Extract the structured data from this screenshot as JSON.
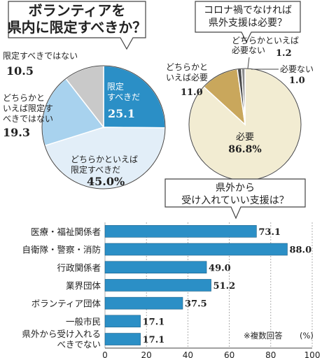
{
  "colors": {
    "ink": "#222222",
    "box_stroke": "#444444",
    "bar_fill": "#2b8fc6",
    "bar_stroke": "#1a5f86",
    "grid": "#999999",
    "pie1": [
      "#2b8fc6",
      "#e2eef8",
      "#a8d2ee",
      "#c9c9c9"
    ],
    "pie2": [
      "#f2ecd2",
      "#c9a75c",
      "#4a4a4a",
      "#8c8c8c"
    ],
    "slice_label_light": "#ffffff"
  },
  "chart_data": [
    {
      "type": "pie",
      "title": [
        "ボランティアを",
        "県内に限定すべきか？"
      ],
      "slices": [
        {
          "label": [
            "限定",
            "すべきだ"
          ],
          "value": 25.1,
          "value_text": "25.1",
          "color_key": 0
        },
        {
          "label": [
            "どちらかといえば",
            "限定すべきだ"
          ],
          "value": 45.0,
          "value_text": "45.0%",
          "color_key": 1
        },
        {
          "label": [
            "どちらかと",
            "いえば限定す",
            "べきではない"
          ],
          "value": 19.3,
          "value_text": "19.3",
          "color_key": 2
        },
        {
          "label": [
            "限定すべきではない"
          ],
          "value": 10.5,
          "value_text": "10.5",
          "color_key": 3
        }
      ]
    },
    {
      "type": "pie",
      "title": [
        "コロナ禍でなければ",
        "県外支援は必要？"
      ],
      "slices": [
        {
          "label": [
            "必要"
          ],
          "value": 86.8,
          "value_text": "86.8%",
          "color_key": 0
        },
        {
          "label": [
            "どちらかと",
            "いえば必要"
          ],
          "value": 11.0,
          "value_text": "11.0",
          "color_key": 1
        },
        {
          "label": [
            "どちらかといえば",
            "必要ない"
          ],
          "value": 1.2,
          "value_text": "1.2",
          "color_key": 2
        },
        {
          "label": [
            "必要ない"
          ],
          "value": 1.0,
          "value_text": "1.0",
          "color_key": 3
        }
      ]
    },
    {
      "type": "bar",
      "orientation": "horizontal",
      "title": [
        "県外から",
        "受け入れていい支援は？"
      ],
      "categories": [
        [
          "医療・福祉関係者"
        ],
        [
          "自衛隊・警察・消防"
        ],
        [
          "行政関係者"
        ],
        [
          "業界団体"
        ],
        [
          "ボランティア団体"
        ],
        [
          "一般市民"
        ],
        [
          "県外から受け入れる",
          "べきでない"
        ]
      ],
      "values": [
        73.1,
        88.0,
        49.0,
        51.2,
        37.5,
        17.1,
        17.1
      ],
      "value_labels": [
        "73.1",
        "88.0",
        "49.0",
        "51.2",
        "37.5",
        "17.1",
        "17.1"
      ],
      "xlim": [
        0,
        100
      ],
      "xticks": [
        0,
        20,
        40,
        60,
        80,
        100
      ],
      "xunit": "(%)",
      "note": "※複数回答",
      "grid": true
    }
  ]
}
